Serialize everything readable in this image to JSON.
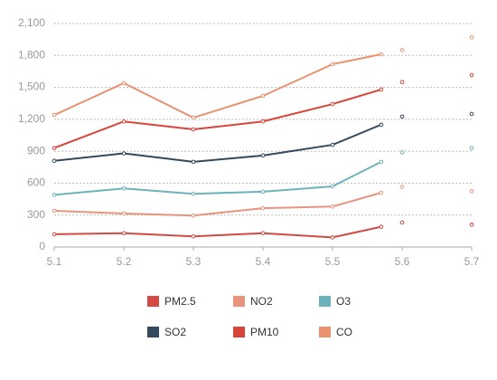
{
  "chart_data": {
    "type": "line",
    "x": [
      5.1,
      5.2,
      5.3,
      5.4,
      5.5,
      5.57
    ],
    "point_x": [
      5.6,
      5.7
    ],
    "xlim": [
      5.1,
      5.7
    ],
    "xticks": [
      5.1,
      5.2,
      5.3,
      5.4,
      5.5,
      5.6,
      5.7
    ],
    "ylim": [
      0,
      2100
    ],
    "yticks": [
      0,
      300,
      600,
      900,
      {
        "value": 1200,
        "label": "1,200"
      },
      {
        "value": 1500,
        "label": "1,500"
      },
      {
        "value": 1800,
        "label": "1,800"
      },
      {
        "value": 2100,
        "label": "2,100"
      }
    ],
    "grid": true,
    "legend": "bottom",
    "series": [
      {
        "name": "PM2.5",
        "color": "#d24a43",
        "values": [
          120,
          130,
          100,
          130,
          90,
          190
        ],
        "points": [
          230,
          210
        ]
      },
      {
        "name": "NO2",
        "color": "#e8947c",
        "values": [
          340,
          315,
          295,
          365,
          380,
          510
        ],
        "points": [
          565,
          525
        ]
      },
      {
        "name": "O3",
        "color": "#6cb3ba",
        "values": [
          490,
          550,
          500,
          520,
          570,
          800
        ],
        "points": [
          890,
          930
        ]
      },
      {
        "name": "SO2",
        "color": "#34495e",
        "values": [
          810,
          880,
          800,
          860,
          960,
          1150
        ],
        "points": [
          1225,
          1250
        ]
      },
      {
        "name": "PM10",
        "color": "#d9443a",
        "values": [
          930,
          1180,
          1105,
          1180,
          1343,
          1480
        ],
        "points": [
          1550,
          1615
        ]
      },
      {
        "name": "CO",
        "color": "#ea9270",
        "values": [
          1240,
          1540,
          1215,
          1420,
          1718,
          1811
        ],
        "points": [
          1850,
          1970
        ]
      }
    ]
  }
}
